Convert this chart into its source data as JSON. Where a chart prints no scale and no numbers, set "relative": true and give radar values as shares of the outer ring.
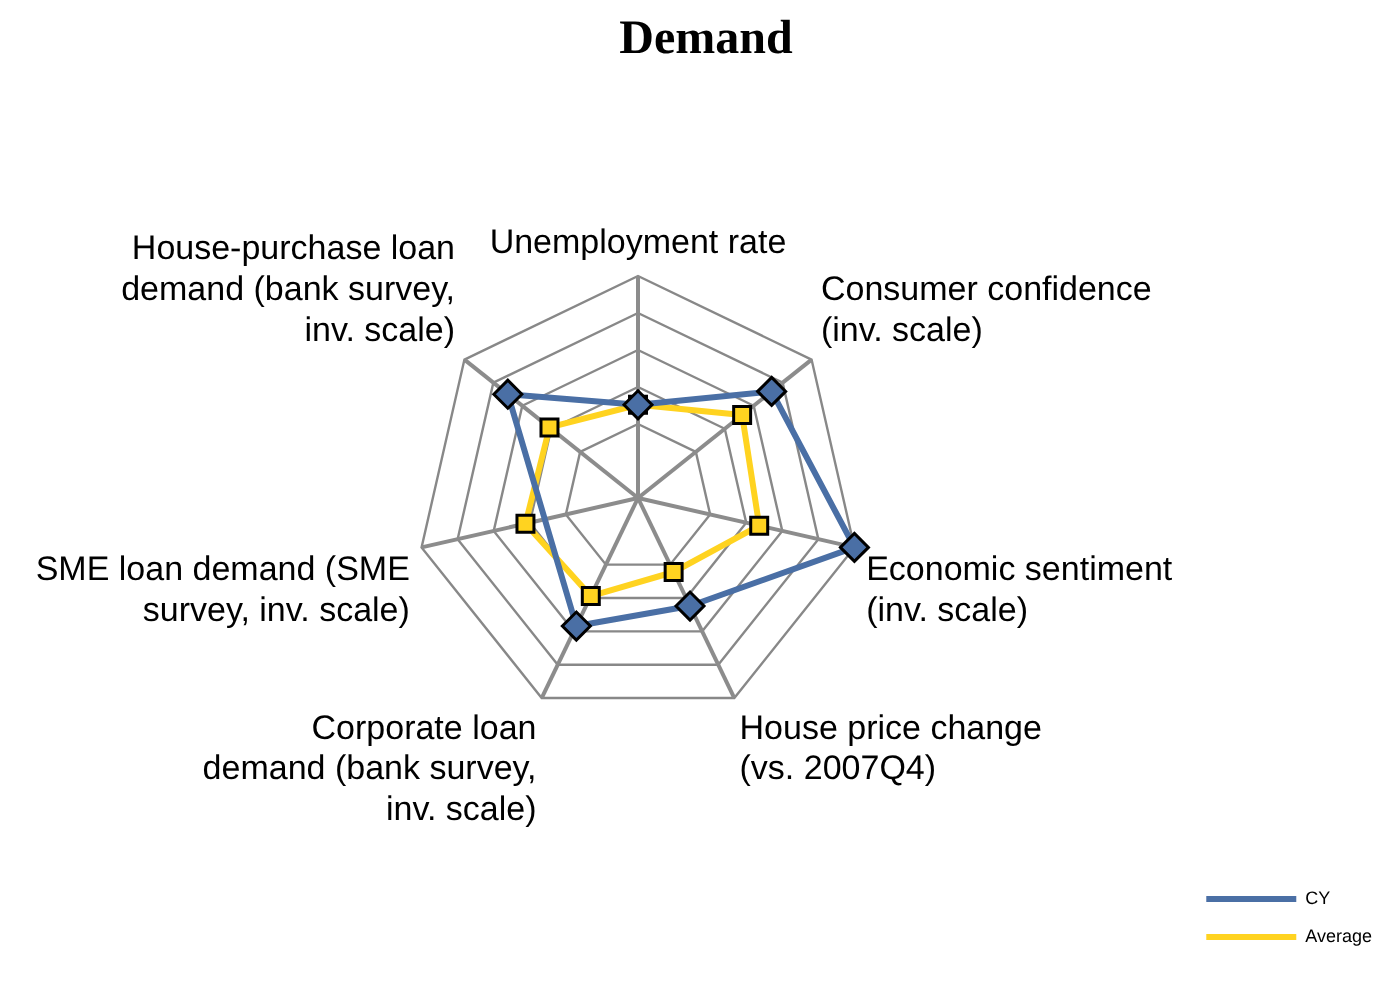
{
  "chart_data": {
    "type": "radar",
    "title": "Demand",
    "relative": true,
    "categories": [
      "Unemployment rate",
      "Consumer confidence (inv. scale)",
      "Economic sentiment (inv. scale)",
      "House price change (vs. 2007Q4)",
      "Corporate loan demand (bank survey, inv. scale)",
      "SME loan demand (SME survey, inv. scale)",
      "House-purchase loan demand (bank survey, inv. scale)"
    ],
    "series": [
      {
        "name": "CY",
        "color": "#4a6fa5",
        "marker": "diamond",
        "values": [
          0.42,
          0.77,
          1.0,
          0.54,
          0.64,
          null,
          0.75
        ]
      },
      {
        "name": "Average",
        "color": "#ffd320",
        "marker": "square",
        "values": [
          0.42,
          0.6,
          0.56,
          0.37,
          0.49,
          0.52,
          0.51
        ]
      }
    ],
    "legend": "bottom right",
    "grid": true
  }
}
